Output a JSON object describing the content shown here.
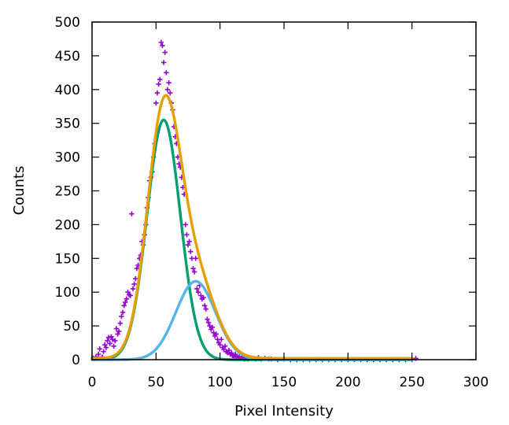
{
  "chart_data": {
    "type": "scatter",
    "xlabel": "Pixel Intensity",
    "ylabel": "Counts",
    "xlim": [
      0,
      300
    ],
    "ylim": [
      0,
      500
    ],
    "xticks": [
      0,
      50,
      100,
      150,
      200,
      250,
      300
    ],
    "yticks": [
      0,
      50,
      100,
      150,
      200,
      250,
      300,
      350,
      400,
      450,
      500
    ],
    "grid": false,
    "legend": "none",
    "colors": {
      "points": "#9400d3",
      "component1": "#009e73",
      "component2": "#56b4e9",
      "total": "#e69f00",
      "axes": "#000000"
    },
    "series": [
      {
        "kind": "points",
        "color": "#9400d3",
        "points": [
          [
            1,
            2
          ],
          [
            3,
            4
          ],
          [
            5,
            8
          ],
          [
            6,
            16
          ],
          [
            8,
            4
          ],
          [
            9,
            12
          ],
          [
            10,
            22
          ],
          [
            11,
            18
          ],
          [
            12,
            28
          ],
          [
            13,
            33
          ],
          [
            14,
            24
          ],
          [
            15,
            34
          ],
          [
            16,
            30
          ],
          [
            17,
            20
          ],
          [
            18,
            28
          ],
          [
            19,
            46
          ],
          [
            20,
            38
          ],
          [
            21,
            42
          ],
          [
            22,
            54
          ],
          [
            23,
            64
          ],
          [
            24,
            70
          ],
          [
            25,
            80
          ],
          [
            26,
            85
          ],
          [
            27,
            90
          ],
          [
            28,
            100
          ],
          [
            29,
            96
          ],
          [
            30,
            95
          ],
          [
            31,
            216
          ],
          [
            32,
            105
          ],
          [
            33,
            112
          ],
          [
            34,
            120
          ],
          [
            35,
            135
          ],
          [
            36,
            140
          ],
          [
            37,
            150
          ],
          [
            38,
            155
          ],
          [
            39,
            175
          ],
          [
            40,
            170
          ],
          [
            41,
            185
          ],
          [
            42,
            200
          ],
          [
            43,
            225
          ],
          [
            44,
            240
          ],
          [
            45,
            265
          ],
          [
            46,
            270
          ],
          [
            47,
            278
          ],
          [
            48,
            300
          ],
          [
            49,
            320
          ],
          [
            50,
            380
          ],
          [
            51,
            395
          ],
          [
            52,
            408
          ],
          [
            53,
            415
          ],
          [
            54,
            470
          ],
          [
            55,
            465
          ],
          [
            56,
            440
          ],
          [
            57,
            455
          ],
          [
            58,
            425
          ],
          [
            59,
            400
          ],
          [
            60,
            410
          ],
          [
            61,
            395
          ],
          [
            62,
            380
          ],
          [
            63,
            370
          ],
          [
            64,
            345
          ],
          [
            65,
            330
          ],
          [
            66,
            320
          ],
          [
            67,
            300
          ],
          [
            68,
            290
          ],
          [
            69,
            285
          ],
          [
            70,
            270
          ],
          [
            71,
            255
          ],
          [
            72,
            245
          ],
          [
            73,
            200
          ],
          [
            74,
            185
          ],
          [
            75,
            170
          ],
          [
            76,
            175
          ],
          [
            77,
            160
          ],
          [
            78,
            150
          ],
          [
            79,
            135
          ],
          [
            80,
            130
          ],
          [
            81,
            150
          ],
          [
            82,
            105
          ],
          [
            83,
            100
          ],
          [
            84,
            110
          ],
          [
            85,
            95
          ],
          [
            86,
            90
          ],
          [
            87,
            92
          ],
          [
            88,
            80
          ],
          [
            89,
            75
          ],
          [
            90,
            60
          ],
          [
            91,
            55
          ],
          [
            92,
            50
          ],
          [
            93,
            45
          ],
          [
            94,
            48
          ],
          [
            95,
            40
          ],
          [
            96,
            35
          ],
          [
            97,
            38
          ],
          [
            98,
            30
          ],
          [
            99,
            25
          ],
          [
            100,
            22
          ],
          [
            101,
            30
          ],
          [
            102,
            18
          ],
          [
            103,
            15
          ],
          [
            104,
            20
          ],
          [
            105,
            12
          ],
          [
            106,
            10
          ],
          [
            107,
            14
          ],
          [
            108,
            8
          ],
          [
            109,
            10
          ],
          [
            110,
            6
          ],
          [
            111,
            4
          ],
          [
            112,
            8
          ],
          [
            113,
            5
          ],
          [
            114,
            3
          ],
          [
            115,
            4
          ],
          [
            116,
            2
          ],
          [
            117,
            3
          ],
          [
            118,
            2
          ],
          [
            119,
            1
          ],
          [
            120,
            2
          ],
          [
            122,
            1
          ],
          [
            125,
            2
          ],
          [
            128,
            1
          ],
          [
            130,
            3
          ],
          [
            132,
            1
          ],
          [
            135,
            2
          ],
          [
            138,
            1
          ],
          [
            140,
            1
          ],
          [
            145,
            0
          ],
          [
            150,
            1
          ],
          [
            155,
            0
          ],
          [
            160,
            0
          ],
          [
            165,
            0
          ],
          [
            170,
            0
          ],
          [
            175,
            0
          ],
          [
            180,
            0
          ],
          [
            185,
            0
          ],
          [
            190,
            0
          ],
          [
            195,
            0
          ],
          [
            200,
            0
          ],
          [
            205,
            0
          ],
          [
            210,
            0
          ],
          [
            215,
            0
          ],
          [
            220,
            0
          ],
          [
            225,
            0
          ],
          [
            230,
            0
          ],
          [
            235,
            0
          ],
          [
            240,
            0
          ],
          [
            245,
            0
          ],
          [
            250,
            0
          ],
          [
            253,
            2
          ]
        ]
      },
      {
        "kind": "gaussian",
        "color": "#009e73",
        "amplitude": 355,
        "mean": 56,
        "sigma": 13,
        "offset": 0,
        "x_range": [
          0,
          250
        ]
      },
      {
        "kind": "gaussian",
        "color": "#56b4e9",
        "amplitude": 116,
        "mean": 81,
        "sigma": 15.5,
        "offset": 0,
        "x_range": [
          0,
          250
        ]
      },
      {
        "kind": "sum",
        "color": "#e69f00",
        "of": [
          1,
          2
        ],
        "offset": 2,
        "x_range": [
          0,
          250
        ]
      }
    ]
  }
}
